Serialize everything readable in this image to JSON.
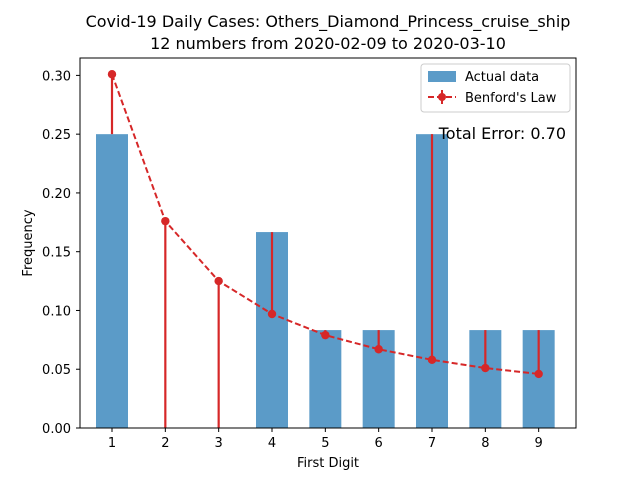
{
  "chart_data": {
    "type": "bar",
    "title_line1": "Covid-19 Daily Cases: Others_Diamond_Princess_cruise_ship",
    "title_line2": "12 numbers from 2020-02-09 to 2020-03-10",
    "xlabel": "First Digit",
    "ylabel": "Frequency",
    "categories": [
      "1",
      "2",
      "3",
      "4",
      "5",
      "6",
      "7",
      "8",
      "9"
    ],
    "x_ticks": [
      "1",
      "2",
      "3",
      "4",
      "5",
      "6",
      "7",
      "8",
      "9"
    ],
    "y_ticks": [
      "0.00",
      "0.05",
      "0.10",
      "0.15",
      "0.20",
      "0.25",
      "0.30"
    ],
    "y_tick_values": [
      0,
      0.05,
      0.1,
      0.15,
      0.2,
      0.25,
      0.3
    ],
    "ylim": [
      0,
      0.3148
    ],
    "xlim": [
      0.4,
      9.7
    ],
    "grid": false,
    "legend_placement": "top-right",
    "series": [
      {
        "name": "Actual data",
        "kind": "bar",
        "color": "#5b9bc8",
        "values": [
          0.25,
          0.0,
          0.0,
          0.1667,
          0.0833,
          0.0833,
          0.25,
          0.0833,
          0.0833
        ]
      },
      {
        "name": "Benford's Law",
        "kind": "line",
        "color": "#d62728",
        "values": [
          0.301,
          0.176,
          0.125,
          0.097,
          0.079,
          0.067,
          0.058,
          0.051,
          0.046
        ]
      }
    ],
    "annotation": "Total Error: 0.70"
  }
}
